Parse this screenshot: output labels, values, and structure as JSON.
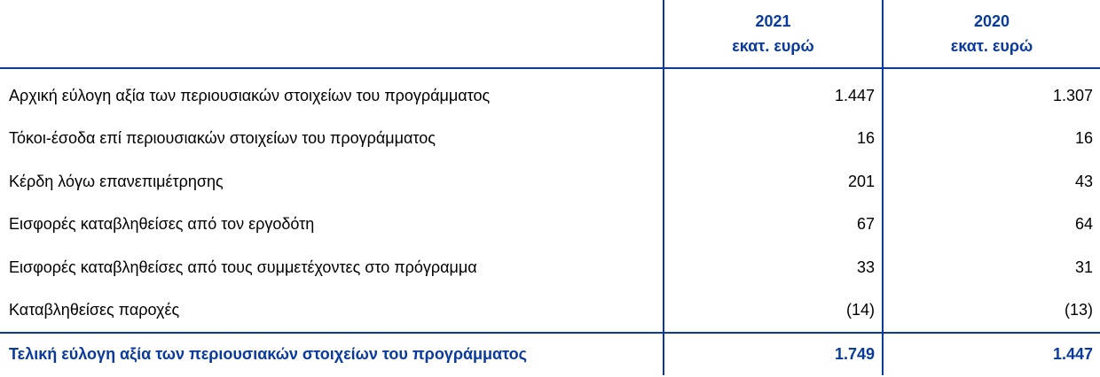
{
  "header": {
    "columns": [
      {
        "year": "2021",
        "unit": "εκατ. ευρώ"
      },
      {
        "year": "2020",
        "unit": "εκατ. ευρώ"
      }
    ]
  },
  "rows": [
    {
      "label": "Αρχική εύλογη αξία των περιουσιακών στοιχείων του προγράμματος",
      "v2021": "1.447",
      "v2020": "1.307"
    },
    {
      "label": "Τόκοι-έσοδα επί περιουσιακών στοιχείων του προγράμματος",
      "v2021": "16",
      "v2020": "16"
    },
    {
      "label": "Κέρδη λόγω επανεπιμέτρησης",
      "v2021": "201",
      "v2020": "43"
    },
    {
      "label": "Εισφορές καταβληθείσες από τον εργοδότη",
      "v2021": "67",
      "v2020": "64"
    },
    {
      "label": "Εισφορές καταβληθείσες από τους συμμετέχοντες στο πρόγραμμα",
      "v2021": "33",
      "v2020": "31"
    },
    {
      "label": "Καταβληθείσες παροχές",
      "v2021": "(14)",
      "v2020": "(13)"
    }
  ],
  "total": {
    "label": "Τελική εύλογη αξία των περιουσιακών στοιχείων του προγράμματος",
    "v2021": "1.749",
    "v2020": "1.447"
  },
  "colors": {
    "accent": "#0a3a9c",
    "text": "#000000"
  }
}
